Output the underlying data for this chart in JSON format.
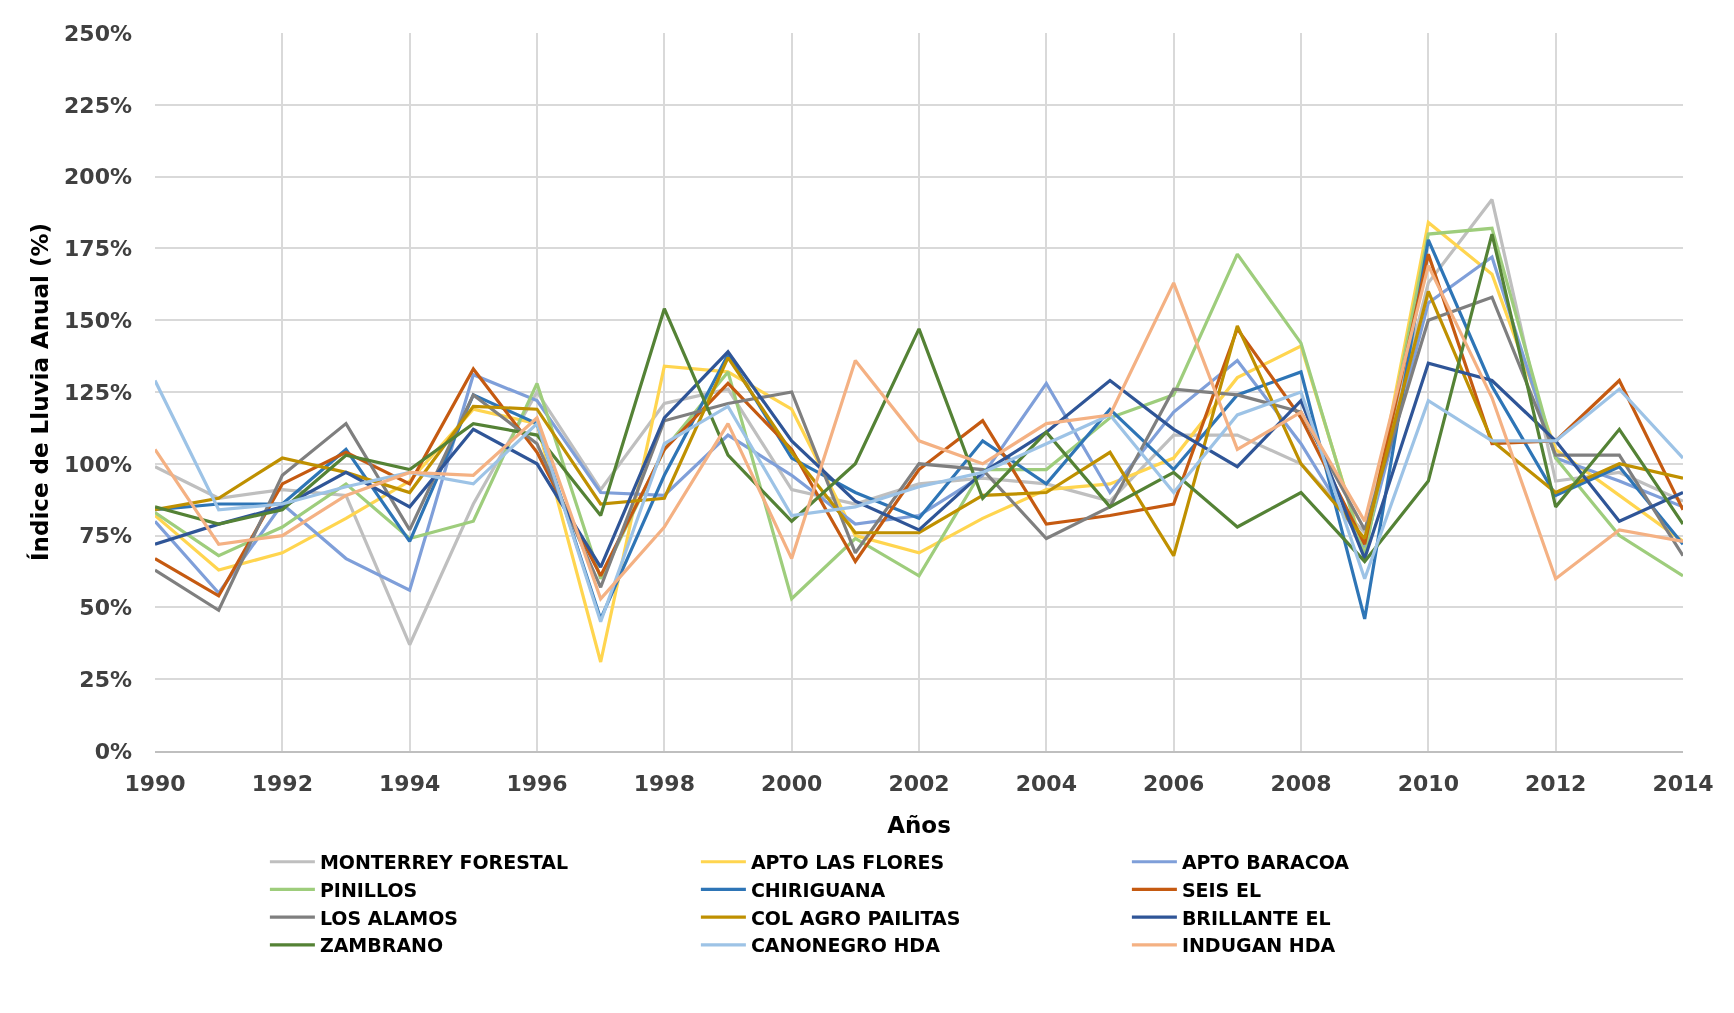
{
  "chart_data": {
    "type": "line",
    "xlabel": "Años",
    "ylabel": "Índice de Lluvia Anual (%)",
    "x": [
      1990,
      1991,
      1992,
      1993,
      1994,
      1995,
      1996,
      1997,
      1998,
      1999,
      2000,
      2001,
      2002,
      2003,
      2004,
      2005,
      2006,
      2007,
      2008,
      2009,
      2010,
      2011,
      2012,
      2013,
      2014
    ],
    "series": [
      {
        "name": "MONTERREY FORESTAL",
        "color": "#bfbfbf",
        "values": [
          99,
          88,
          91,
          89,
          37,
          86,
          125,
          91,
          121,
          126,
          91,
          86,
          93,
          95,
          93,
          87,
          110,
          110,
          100,
          76,
          163,
          192,
          94,
          97,
          87
        ]
      },
      {
        "name": "APTO LAS FLORES",
        "color": "#ffd54f",
        "values": [
          82,
          63,
          69,
          81,
          94,
          119,
          114,
          31,
          134,
          132,
          119,
          75,
          69,
          81,
          91,
          93,
          102,
          130,
          141,
          69,
          184,
          166,
          105,
          89,
          73
        ]
      },
      {
        "name": "APTO BARACOA",
        "color": "#7f9fd9",
        "values": [
          80,
          55,
          86,
          67,
          56,
          131,
          122,
          90,
          89,
          110,
          96,
          79,
          82,
          96,
          128,
          90,
          118,
          136,
          107,
          71,
          156,
          172,
          102,
          94,
          85
        ]
      },
      {
        "name": "PINILLOS",
        "color": "#9ecd7c",
        "values": [
          83,
          68,
          78,
          93,
          74,
          80,
          128,
          60,
          105,
          132,
          53,
          74,
          61,
          98,
          98,
          116,
          124,
          173,
          142,
          68,
          180,
          182,
          102,
          75,
          61
        ]
      },
      {
        "name": "CHIRIGUANA",
        "color": "#2e75b6",
        "values": [
          84,
          86,
          86,
          105,
          73,
          124,
          114,
          46,
          96,
          138,
          102,
          90,
          81,
          108,
          93,
          119,
          98,
          124,
          132,
          46,
          178,
          127,
          89,
          99,
          72
        ]
      },
      {
        "name": "SEIS EL",
        "color": "#c55a11",
        "values": [
          67,
          54,
          93,
          104,
          93,
          133,
          104,
          61,
          105,
          128,
          105,
          66,
          98,
          115,
          79,
          82,
          86,
          147,
          116,
          72,
          173,
          107,
          108,
          129,
          84
        ]
      },
      {
        "name": "LOS ALAMOS",
        "color": "#7f7f7f",
        "values": [
          63,
          49,
          96,
          114,
          77,
          124,
          107,
          57,
          115,
          121,
          125,
          69,
          100,
          98,
          74,
          85,
          126,
          124,
          118,
          77,
          150,
          158,
          103,
          103,
          68
        ]
      },
      {
        "name": "COL AGRO PAILITAS",
        "color": "#bf9000",
        "values": [
          84,
          88,
          102,
          97,
          90,
          120,
          119,
          86,
          88,
          137,
          104,
          76,
          76,
          89,
          90,
          104,
          68,
          148,
          100,
          74,
          160,
          108,
          90,
          100,
          95
        ]
      },
      {
        "name": "BRILLANTE EL",
        "color": "#2f5597",
        "values": [
          72,
          79,
          85,
          97,
          85,
          112,
          100,
          64,
          116,
          139,
          108,
          87,
          77,
          97,
          111,
          129,
          112,
          99,
          122,
          67,
          135,
          129,
          108,
          80,
          90
        ]
      },
      {
        "name": "ZAMBRANO",
        "color": "#548235",
        "values": [
          85,
          79,
          84,
          103,
          98,
          114,
          110,
          82,
          154,
          103,
          80,
          100,
          147,
          88,
          111,
          85,
          97,
          78,
          90,
          66,
          94,
          180,
          85,
          112,
          79
        ]
      },
      {
        "name": "CANONEGRO HDA",
        "color": "#9dc3e6",
        "values": [
          129,
          84,
          86,
          92,
          97,
          93,
          114,
          45,
          107,
          120,
          82,
          85,
          92,
          97,
          107,
          117,
          90,
          117,
          125,
          60,
          122,
          108,
          108,
          126,
          102
        ]
      },
      {
        "name": "INDUGAN HDA",
        "color": "#f4b183",
        "values": [
          105,
          72,
          75,
          89,
          97,
          96,
          116,
          53,
          78,
          114,
          67,
          136,
          108,
          100,
          114,
          117,
          163,
          105,
          118,
          80,
          169,
          123,
          60,
          77,
          73
        ]
      }
    ],
    "xlim": [
      1990,
      2014
    ],
    "xticks": [
      1990,
      1992,
      1994,
      1996,
      1998,
      2000,
      2002,
      2004,
      2006,
      2008,
      2010,
      2012,
      2014
    ],
    "ylim": [
      0,
      250
    ],
    "yticks": [
      {
        "value": 0,
        "label": "0%"
      },
      {
        "value": 25,
        "label": "25%"
      },
      {
        "value": 50,
        "label": "50%"
      },
      {
        "value": 75,
        "label": "75%"
      },
      {
        "value": 100,
        "label": "100%"
      },
      {
        "value": 125,
        "label": "125%"
      },
      {
        "value": 150,
        "label": "150%"
      },
      {
        "value": 175,
        "label": "175%"
      },
      {
        "value": 200,
        "label": "200%"
      },
      {
        "value": 225,
        "label": "225%"
      },
      {
        "value": 250,
        "label": "250%"
      }
    ],
    "grid": true,
    "legend": "bottom",
    "marker": "none",
    "line_style": "solid"
  }
}
